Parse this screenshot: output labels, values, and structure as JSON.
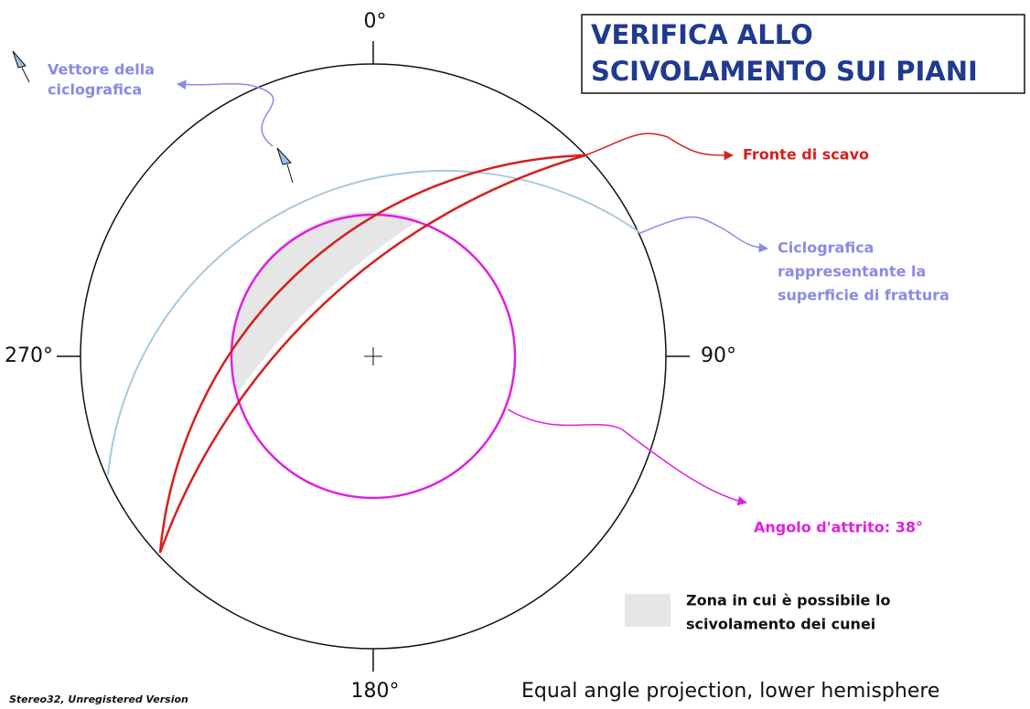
{
  "directions": {
    "north": "0°",
    "east": "90°",
    "south": "180°",
    "west": "270°"
  },
  "title": [
    "VERIFICA ALLO",
    "SCIVOLAMENTO SUI PIANI"
  ],
  "labels": {
    "vector": [
      "Vettore della",
      "ciclografica"
    ],
    "face": "Fronte di scavo",
    "cyclographic": [
      "Ciclografica",
      "rappresentante la",
      "superficie di frattura"
    ],
    "friction": "Angolo d'attrito: 38°"
  },
  "legend": [
    "Zona in cui è possibile lo",
    "scivolamento dei cunei"
  ],
  "projection": "Equal angle projection, lower hemisphere",
  "watermark": "Stereo32, Unregistered Version"
}
